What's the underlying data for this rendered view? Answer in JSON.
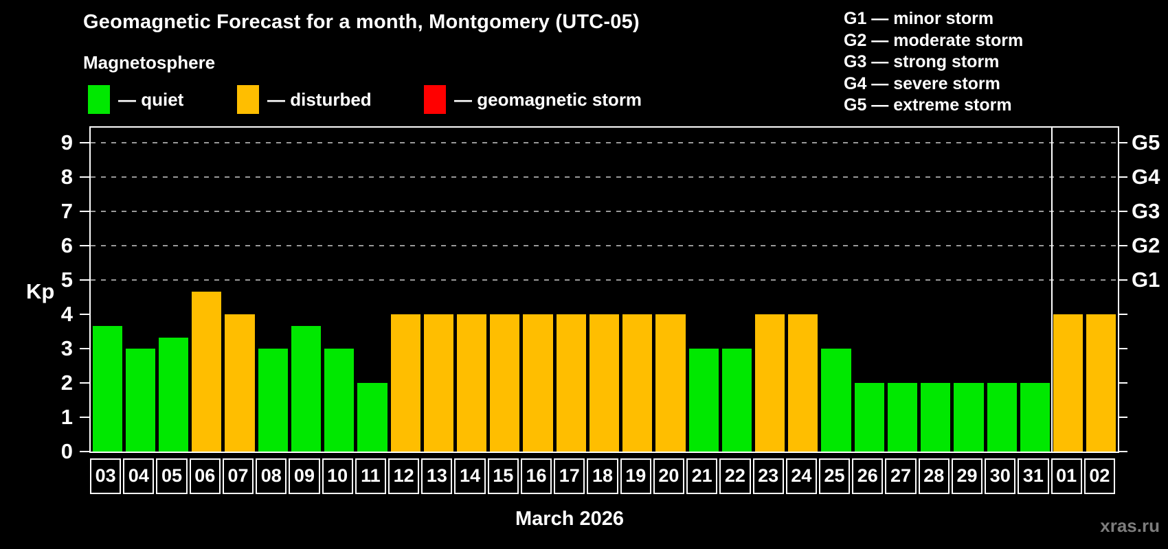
{
  "header": {
    "title": "Geomagnetic Forecast for a month, Montgomery (UTC-05)",
    "subtitle": "Magnetosphere"
  },
  "legend": {
    "items": [
      {
        "key": "quiet",
        "label": "— quiet",
        "color": "#00E800"
      },
      {
        "key": "disturbed",
        "label": "— disturbed",
        "color": "#FFBE00"
      },
      {
        "key": "storm",
        "label": "— geomagnetic storm",
        "color": "#FF0000"
      }
    ]
  },
  "g_scale_legend": {
    "items": [
      "G1 — minor storm",
      "G2 — moderate storm",
      "G3 — strong storm",
      "G4 — severe storm",
      "G5 — extreme storm"
    ]
  },
  "footer": {
    "month_label": "March 2026",
    "watermark": "xras.ru"
  },
  "chart_data": {
    "type": "bar",
    "title": "Geomagnetic Forecast for a month, Montgomery (UTC-05)",
    "ylabel": "Kp",
    "xlabel": "March 2026",
    "ylim": [
      0,
      9.4
    ],
    "yticks": [
      0,
      1,
      2,
      3,
      4,
      5,
      6,
      7,
      8,
      9
    ],
    "grid": "horizontal dashed at Kp 5-9",
    "grid_kp": [
      5,
      6,
      7,
      8,
      9
    ],
    "right_axis_labels": [
      {
        "label": "G1",
        "kp": 5
      },
      {
        "label": "G2",
        "kp": 6
      },
      {
        "label": "G3",
        "kp": 7
      },
      {
        "label": "G4",
        "kp": 8
      },
      {
        "label": "G5",
        "kp": 9
      }
    ],
    "status_colors": {
      "quiet": "#00E800",
      "disturbed": "#FFBE00",
      "storm": "#FF0000"
    },
    "month_separator_after_index": 28,
    "bars": [
      {
        "day": "03",
        "kp": 3.67,
        "status": "quiet"
      },
      {
        "day": "04",
        "kp": 3.0,
        "status": "quiet"
      },
      {
        "day": "05",
        "kp": 3.33,
        "status": "quiet"
      },
      {
        "day": "06",
        "kp": 4.67,
        "status": "disturbed"
      },
      {
        "day": "07",
        "kp": 4.0,
        "status": "disturbed"
      },
      {
        "day": "08",
        "kp": 3.0,
        "status": "quiet"
      },
      {
        "day": "09",
        "kp": 3.67,
        "status": "quiet"
      },
      {
        "day": "10",
        "kp": 3.0,
        "status": "quiet"
      },
      {
        "day": "11",
        "kp": 2.0,
        "status": "quiet"
      },
      {
        "day": "12",
        "kp": 4.0,
        "status": "disturbed"
      },
      {
        "day": "13",
        "kp": 4.0,
        "status": "disturbed"
      },
      {
        "day": "14",
        "kp": 4.0,
        "status": "disturbed"
      },
      {
        "day": "15",
        "kp": 4.0,
        "status": "disturbed"
      },
      {
        "day": "16",
        "kp": 4.0,
        "status": "disturbed"
      },
      {
        "day": "17",
        "kp": 4.0,
        "status": "disturbed"
      },
      {
        "day": "18",
        "kp": 4.0,
        "status": "disturbed"
      },
      {
        "day": "19",
        "kp": 4.0,
        "status": "disturbed"
      },
      {
        "day": "20",
        "kp": 4.0,
        "status": "disturbed"
      },
      {
        "day": "21",
        "kp": 3.0,
        "status": "quiet"
      },
      {
        "day": "22",
        "kp": 3.0,
        "status": "quiet"
      },
      {
        "day": "23",
        "kp": 4.0,
        "status": "disturbed"
      },
      {
        "day": "24",
        "kp": 4.0,
        "status": "disturbed"
      },
      {
        "day": "25",
        "kp": 3.0,
        "status": "quiet"
      },
      {
        "day": "26",
        "kp": 2.0,
        "status": "quiet"
      },
      {
        "day": "27",
        "kp": 2.0,
        "status": "quiet"
      },
      {
        "day": "28",
        "kp": 2.0,
        "status": "quiet"
      },
      {
        "day": "29",
        "kp": 2.0,
        "status": "quiet"
      },
      {
        "day": "30",
        "kp": 2.0,
        "status": "quiet"
      },
      {
        "day": "31",
        "kp": 2.0,
        "status": "quiet"
      },
      {
        "day": "01",
        "kp": 4.0,
        "status": "disturbed"
      },
      {
        "day": "02",
        "kp": 4.0,
        "status": "disturbed"
      }
    ]
  }
}
